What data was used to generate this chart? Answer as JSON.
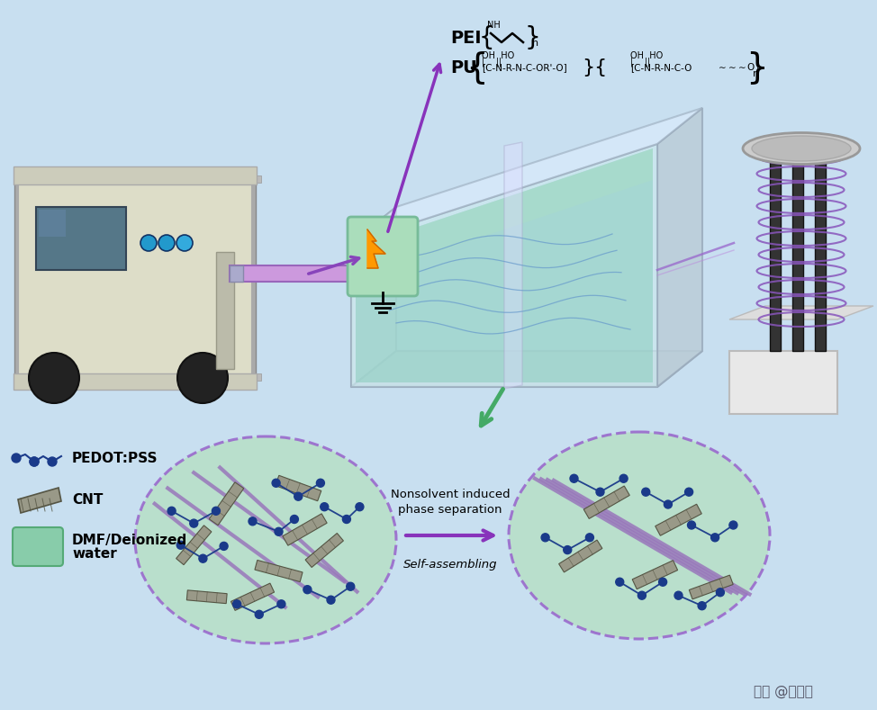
{
  "background_color": "#c8dff0",
  "legend_items": [
    {
      "label": "PEDOT:PSS",
      "color": "#1a3a7a"
    },
    {
      "label": "CNT",
      "color": "#888877"
    },
    {
      "label": "DMF/Deionized\nwater",
      "color": "#7ec8a0"
    }
  ],
  "arrow_text1": "Nonsolvent induced\nphase separation",
  "arrow_text2": "Self-assembling",
  "watermark": "头条 @易丝帮",
  "circle_color": "#b8dfc8",
  "circle_border": "#9966cc",
  "fiber_color": "#9977bb",
  "cnt_color": "#999988",
  "pedot_color": "#1a3a8a"
}
